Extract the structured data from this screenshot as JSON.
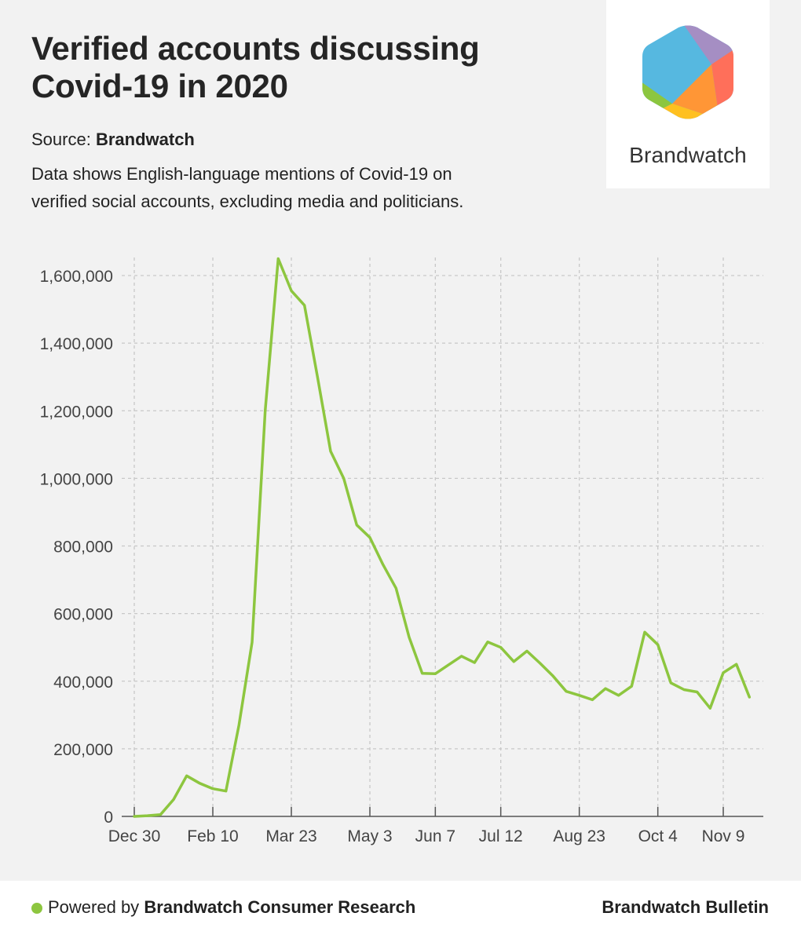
{
  "title_lines": [
    "Verified accounts discussing",
    "Covid-19 in 2020"
  ],
  "source": {
    "label": "Source:",
    "value": "Brandwatch"
  },
  "description_lines": [
    "Data shows English-language mentions of Covid-19 on",
    "verified social accounts, excluding media and politicians."
  ],
  "logo": {
    "text": "Brandwatch",
    "icon": "brandwatch-hexagon-logo"
  },
  "footer": {
    "prefix": "Powered by",
    "brand": "Brandwatch Consumer Research",
    "right": "Brandwatch Bulletin",
    "dot_color": "#8dc63f"
  },
  "colors": {
    "line": "#8dc63f",
    "grid": "#c8c8c8",
    "axis": "#555555",
    "background": "#f2f2f2"
  },
  "chart_data": {
    "type": "line",
    "x_unit": "weeks starting Dec 30, 2019",
    "x_tick_labels": [
      "Dec 30",
      "Feb 10",
      "Mar 23",
      "May 3",
      "Jun 7",
      "Jul 12",
      "Aug 23",
      "Oct 4",
      "Nov 9"
    ],
    "x_tick_weeks": [
      0,
      6,
      12,
      18,
      23,
      28,
      34,
      40,
      45
    ],
    "ylim": [
      0,
      1650000
    ],
    "y_ticks": [
      0,
      200000,
      400000,
      600000,
      800000,
      1000000,
      1200000,
      1400000,
      1600000
    ],
    "y_tick_labels": [
      "0",
      "200,000",
      "400,000",
      "600,000",
      "800,000",
      "1,000,000",
      "1,200,000",
      "1,400,000",
      "1,600,000"
    ],
    "grid": true,
    "series": [
      {
        "x": [
          0,
          1,
          2,
          3,
          4,
          5,
          6,
          7,
          8,
          9,
          10,
          11,
          12,
          13,
          14,
          15,
          16,
          17,
          18,
          19,
          20,
          21,
          22,
          23,
          24,
          25,
          26,
          27,
          28,
          29,
          30,
          31,
          32,
          33,
          34,
          35,
          36,
          37,
          38,
          39,
          40,
          41,
          42,
          43,
          44,
          45,
          46,
          47
        ],
        "values": [
          0,
          2000,
          5000,
          50000,
          120000,
          98000,
          82000,
          75000,
          270000,
          515000,
          1200000,
          1650000,
          1555000,
          1512000,
          1300000,
          1080000,
          1000000,
          862000,
          825000,
          745000,
          675000,
          530000,
          423000,
          422000,
          448000,
          474000,
          455000,
          516000,
          500000,
          458000,
          489000,
          453000,
          415000,
          370000,
          358000,
          345000,
          378000,
          358000,
          385000,
          545000,
          508000,
          395000,
          375000,
          368000,
          320000,
          425000,
          450000,
          353000
        ]
      }
    ]
  }
}
